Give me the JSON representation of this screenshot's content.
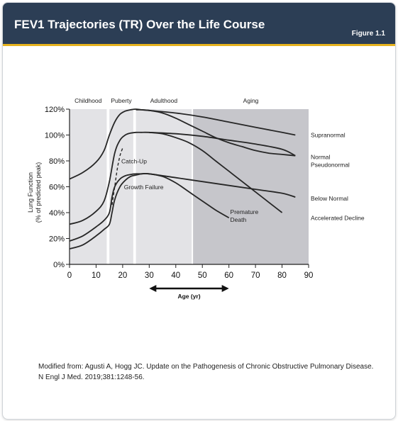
{
  "header": {
    "title": "FEV1 Trajectories (TR) Over the Life Course",
    "figure_label": "Figure 1.1"
  },
  "caption": "Modified from: Agusti A, Hogg JC. Update on the Pathogenesis of Chronic Obstructive Pulmonary Disease. N Engl J Med. 2019;381:1248-56.",
  "colors": {
    "header_bg": "#2c3e55",
    "accent": "#e6b21e",
    "band_light": "#e3e3e6",
    "band_dark": "#c6c6cb",
    "line": "#262626"
  },
  "chart_data": {
    "type": "line",
    "ylabel": [
      "Lung Function",
      "(% of predicted peak)"
    ],
    "xlabel": "Age (yr)",
    "xlim": [
      0,
      90
    ],
    "ylim": [
      0,
      120
    ],
    "x_ticks": [
      0,
      10,
      20,
      30,
      40,
      50,
      60,
      70,
      80,
      90
    ],
    "y_ticks": [
      {
        "value": 0,
        "label": "0%"
      },
      {
        "value": 20,
        "label": "20%"
      },
      {
        "value": 40,
        "label": "40%"
      },
      {
        "value": 60,
        "label": "60%"
      },
      {
        "value": 80,
        "label": "80%"
      },
      {
        "value": 100,
        "label": "100%"
      },
      {
        "value": 120,
        "label": "120%"
      }
    ],
    "grid": false,
    "age_bands": [
      {
        "label": "Childhood",
        "start": 0,
        "end": 14,
        "shade": "light"
      },
      {
        "label": "Puberty",
        "start": 15,
        "end": 24,
        "shade": "light"
      },
      {
        "label": "Adulthood",
        "start": 25,
        "end": 46,
        "shade": "light"
      },
      {
        "label": "Aging",
        "start": 46.5,
        "end": 90,
        "shade": "dark"
      }
    ],
    "series": [
      {
        "name": "Supranormal",
        "x": [
          0,
          5,
          10,
          13,
          15,
          17,
          19,
          21,
          23,
          25,
          27,
          30,
          40,
          50,
          60,
          70,
          80,
          85
        ],
        "y": [
          66,
          71,
          79,
          88,
          100,
          110,
          116,
          118.5,
          119.5,
          120,
          119.5,
          119,
          117,
          114,
          110,
          106,
          102,
          100
        ]
      },
      {
        "name": "Normal",
        "x": [
          0,
          5,
          10,
          13,
          15,
          17,
          19,
          21,
          23,
          25,
          27,
          30,
          40,
          50,
          60,
          70,
          80,
          85
        ],
        "y": [
          31,
          34,
          41,
          49,
          64,
          86,
          96,
          100,
          101.5,
          102,
          102,
          102,
          101,
          99,
          96,
          93,
          89,
          84
        ]
      },
      {
        "name": "Pseudonormal",
        "x": [
          25,
          27,
          30,
          35,
          40,
          45,
          50,
          55,
          60,
          65,
          70,
          75,
          80,
          85
        ],
        "y": [
          119.5,
          119.5,
          119,
          117,
          113,
          108,
          103,
          98,
          94,
          91,
          88,
          86,
          85,
          84
        ]
      },
      {
        "name": "Below Normal",
        "x": [
          0,
          5,
          10,
          13,
          15,
          16,
          17,
          19,
          21,
          23,
          25,
          27,
          30,
          40,
          50,
          60,
          70,
          80,
          85
        ],
        "y": [
          18,
          22,
          29,
          34,
          40,
          52,
          60,
          66,
          68.5,
          69.5,
          70,
          70,
          70,
          67,
          64,
          61,
          58,
          55,
          52
        ]
      },
      {
        "name": "Accelerated Decline",
        "x": [
          30,
          35,
          40,
          45,
          50,
          55,
          60,
          65,
          70,
          75,
          80
        ],
        "y": [
          102,
          101,
          98,
          94,
          88,
          80,
          72,
          64,
          56,
          48,
          40
        ]
      },
      {
        "name": "Premature Death",
        "x": [
          25,
          27,
          30,
          35,
          40,
          45,
          50,
          55,
          60
        ],
        "y": [
          69,
          70,
          70,
          68,
          63,
          56,
          49,
          42,
          36
        ]
      },
      {
        "name": "Growth Failure",
        "x": [
          0,
          5,
          10,
          13,
          15,
          16,
          17,
          19,
          21,
          23,
          25
        ],
        "y": [
          12,
          15,
          22,
          27,
          31,
          40,
          50,
          60,
          65,
          68,
          69
        ]
      },
      {
        "name": "Catch-Up",
        "x": [
          16,
          17,
          18,
          19,
          20
        ],
        "y": [
          46,
          60,
          74,
          84,
          90
        ],
        "dashed": true
      }
    ],
    "annotations": [
      {
        "text": "Catch-Up",
        "x": 19.5,
        "y": 78
      },
      {
        "text": "Growth Failure",
        "x": 20.5,
        "y": 58
      },
      {
        "text": "Premature",
        "x": 60.5,
        "y": 39
      },
      {
        "text": "Death",
        "x": 60.5,
        "y": 33
      }
    ],
    "legend_labels": [
      {
        "text": "Supranormal",
        "y": 100
      },
      {
        "text": "Normal",
        "y": 83
      },
      {
        "text": "Pseudonormal",
        "y": 77
      },
      {
        "text": "Below Normal",
        "y": 51
      },
      {
        "text": "Accelerated Decline",
        "y": 36
      }
    ],
    "age_axis_range": [
      30,
      60
    ]
  }
}
